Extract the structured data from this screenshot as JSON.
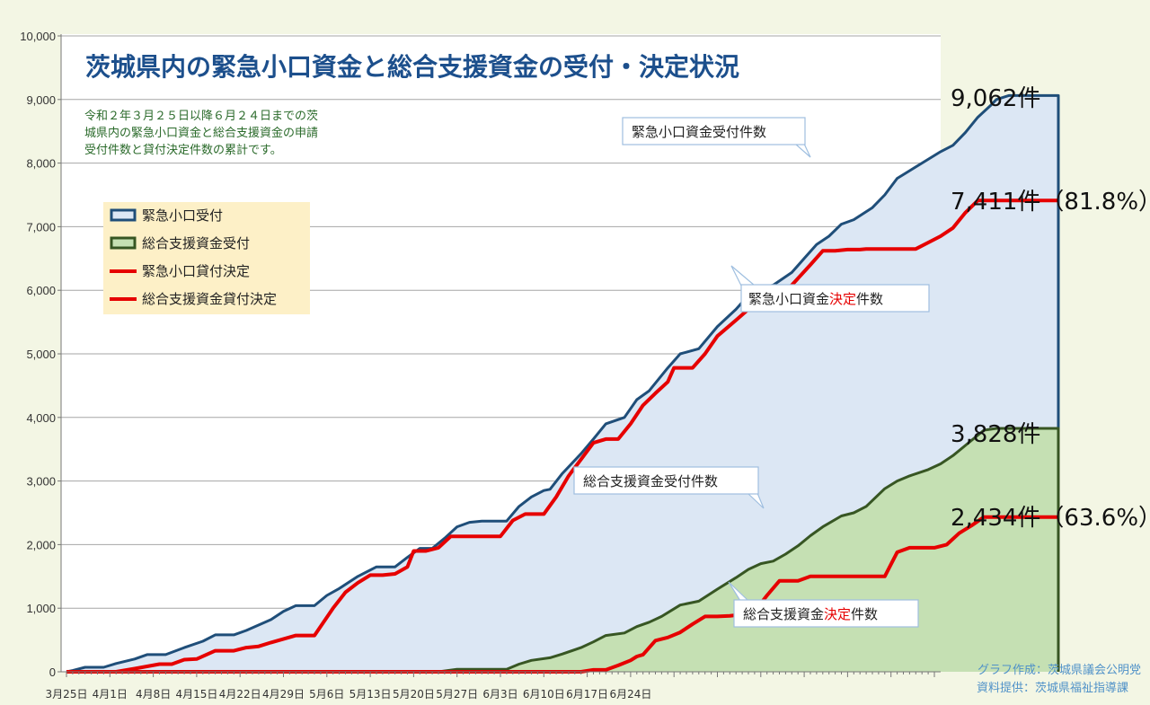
{
  "chart_data": {
    "type": "area",
    "title": "茨城県内の緊急小口資金と総合支援資金の受付・決定状況",
    "subtitle_lines": [
      "令和２年３月２５日以降６月２４日までの茨",
      "城県内の緊急小口資金と総合支援資金の申請",
      "受付件数と貸付決定件数の累計です。"
    ],
    "ylim": [
      0,
      10000
    ],
    "yticks": [
      "0",
      "1,000",
      "2,000",
      "3,000",
      "4,000",
      "5,000",
      "6,000",
      "7,000",
      "8,000",
      "9,000",
      "10,000"
    ],
    "xticks": [
      "3月25日",
      "4月1日",
      "4月8日",
      "4月15日",
      "4月22日",
      "4月29日",
      "5月6日",
      "5月13日",
      "5月20日",
      "5月27日",
      "6月3日",
      "6月10日",
      "6月17日",
      "6月24日"
    ],
    "legend": [
      "緊急小口受付",
      "総合支援資金受付",
      "緊急小口貸付決定",
      "総合支援資金貸付決定"
    ],
    "series": [
      {
        "name": "緊急小口受付",
        "color": "#1f4e79",
        "fill": "#dce7f4",
        "points": [
          [
            0,
            0
          ],
          [
            1,
            20
          ],
          [
            3,
            70
          ],
          [
            6,
            70
          ],
          [
            8,
            130
          ],
          [
            11,
            200
          ],
          [
            13,
            270
          ],
          [
            16,
            270
          ],
          [
            19,
            380
          ],
          [
            22,
            480
          ],
          [
            24,
            580
          ],
          [
            27,
            580
          ],
          [
            29,
            650
          ],
          [
            33,
            820
          ],
          [
            35,
            950
          ],
          [
            37,
            1040
          ],
          [
            40,
            1040
          ],
          [
            42,
            1200
          ],
          [
            44,
            1310
          ],
          [
            47,
            1500
          ],
          [
            50,
            1650
          ],
          [
            53,
            1650
          ],
          [
            55,
            1800
          ],
          [
            57,
            1940
          ],
          [
            59,
            1940
          ],
          [
            61,
            2100
          ],
          [
            63,
            2280
          ],
          [
            65,
            2350
          ],
          [
            67,
            2370
          ],
          [
            71,
            2370
          ],
          [
            73,
            2600
          ],
          [
            75,
            2750
          ],
          [
            77,
            2850
          ],
          [
            78,
            2870
          ],
          [
            80,
            3120
          ],
          [
            83,
            3430
          ],
          [
            85,
            3660
          ],
          [
            87,
            3900
          ],
          [
            90,
            4000
          ],
          [
            92,
            4280
          ],
          [
            94,
            4420
          ],
          [
            97,
            4780
          ],
          [
            99,
            5000
          ],
          [
            102,
            5080
          ],
          [
            105,
            5430
          ],
          [
            108,
            5700
          ],
          [
            110,
            5920
          ],
          [
            112,
            6040
          ],
          [
            114,
            6080
          ],
          [
            117,
            6280
          ],
          [
            119,
            6500
          ],
          [
            121,
            6720
          ],
          [
            123,
            6850
          ],
          [
            125,
            7040
          ],
          [
            127,
            7110
          ],
          [
            130,
            7300
          ],
          [
            132,
            7500
          ],
          [
            134,
            7760
          ],
          [
            136,
            7880
          ],
          [
            139,
            8060
          ],
          [
            141,
            8180
          ],
          [
            143,
            8280
          ],
          [
            145,
            8480
          ],
          [
            147,
            8720
          ],
          [
            149,
            8900
          ],
          [
            150,
            9000
          ],
          [
            152,
            9062
          ],
          [
            160,
            9062
          ]
        ],
        "end_label": "9,062件"
      },
      {
        "name": "総合支援資金受付",
        "color": "#375623",
        "fill": "#c5e0b3",
        "points": [
          [
            0,
            0
          ],
          [
            60,
            0
          ],
          [
            63,
            40
          ],
          [
            71,
            40
          ],
          [
            73,
            120
          ],
          [
            75,
            180
          ],
          [
            78,
            220
          ],
          [
            80,
            280
          ],
          [
            83,
            380
          ],
          [
            85,
            470
          ],
          [
            87,
            570
          ],
          [
            90,
            610
          ],
          [
            92,
            710
          ],
          [
            94,
            780
          ],
          [
            96,
            870
          ],
          [
            99,
            1050
          ],
          [
            102,
            1110
          ],
          [
            105,
            1300
          ],
          [
            108,
            1480
          ],
          [
            110,
            1610
          ],
          [
            112,
            1700
          ],
          [
            114,
            1740
          ],
          [
            116,
            1850
          ],
          [
            118,
            1980
          ],
          [
            120,
            2140
          ],
          [
            122,
            2280
          ],
          [
            125,
            2450
          ],
          [
            127,
            2500
          ],
          [
            129,
            2600
          ],
          [
            132,
            2880
          ],
          [
            134,
            3000
          ],
          [
            136,
            3080
          ],
          [
            139,
            3180
          ],
          [
            141,
            3270
          ],
          [
            143,
            3400
          ],
          [
            145,
            3560
          ],
          [
            147,
            3720
          ],
          [
            148,
            3800
          ],
          [
            150,
            3828
          ],
          [
            160,
            3828
          ]
        ],
        "end_label": "3,828件"
      },
      {
        "name": "緊急小口貸付決定",
        "color": "#e60000",
        "points": [
          [
            0,
            0
          ],
          [
            8,
            0
          ],
          [
            11,
            50
          ],
          [
            15,
            120
          ],
          [
            17,
            120
          ],
          [
            19,
            190
          ],
          [
            21,
            200
          ],
          [
            24,
            330
          ],
          [
            27,
            330
          ],
          [
            29,
            380
          ],
          [
            31,
            400
          ],
          [
            33,
            460
          ],
          [
            37,
            570
          ],
          [
            40,
            570
          ],
          [
            43,
            1000
          ],
          [
            45,
            1250
          ],
          [
            47,
            1400
          ],
          [
            49,
            1520
          ],
          [
            51,
            1520
          ],
          [
            53,
            1540
          ],
          [
            55,
            1650
          ],
          [
            56,
            1900
          ],
          [
            58,
            1900
          ],
          [
            60,
            1950
          ],
          [
            62,
            2130
          ],
          [
            70,
            2130
          ],
          [
            72,
            2380
          ],
          [
            74,
            2480
          ],
          [
            77,
            2480
          ],
          [
            79,
            2750
          ],
          [
            81,
            3080
          ],
          [
            83,
            3340
          ],
          [
            85,
            3600
          ],
          [
            87,
            3660
          ],
          [
            89,
            3660
          ],
          [
            91,
            3900
          ],
          [
            93,
            4190
          ],
          [
            95,
            4380
          ],
          [
            97,
            4560
          ],
          [
            98,
            4780
          ],
          [
            101,
            4780
          ],
          [
            103,
            5000
          ],
          [
            105,
            5280
          ],
          [
            108,
            5530
          ],
          [
            110,
            5700
          ],
          [
            113,
            5700
          ],
          [
            115,
            5900
          ],
          [
            117,
            6080
          ],
          [
            120,
            6400
          ],
          [
            122,
            6620
          ],
          [
            124,
            6620
          ],
          [
            126,
            6640
          ],
          [
            128,
            6640
          ],
          [
            129,
            6650
          ],
          [
            137,
            6650
          ],
          [
            139,
            6750
          ],
          [
            141,
            6850
          ],
          [
            143,
            6980
          ],
          [
            145,
            7220
          ],
          [
            147,
            7411
          ],
          [
            160,
            7411
          ]
        ],
        "end_label": "7,411件（81.8%）"
      },
      {
        "name": "総合支援資金貸付決定",
        "color": "#e60000",
        "points": [
          [
            0,
            0
          ],
          [
            83,
            0
          ],
          [
            85,
            30
          ],
          [
            87,
            30
          ],
          [
            89,
            100
          ],
          [
            91,
            180
          ],
          [
            92,
            240
          ],
          [
            93,
            270
          ],
          [
            95,
            490
          ],
          [
            97,
            540
          ],
          [
            99,
            620
          ],
          [
            101,
            750
          ],
          [
            103,
            870
          ],
          [
            105,
            870
          ],
          [
            107,
            880
          ],
          [
            109,
            900
          ],
          [
            111,
            950
          ],
          [
            113,
            1200
          ],
          [
            115,
            1430
          ],
          [
            118,
            1430
          ],
          [
            120,
            1500
          ],
          [
            132,
            1500
          ],
          [
            134,
            1880
          ],
          [
            136,
            1950
          ],
          [
            140,
            1950
          ],
          [
            142,
            2000
          ],
          [
            144,
            2180
          ],
          [
            146,
            2300
          ],
          [
            148,
            2434
          ],
          [
            160,
            2434
          ]
        ],
        "end_label": "2,434件（63.6%）"
      }
    ],
    "callouts": [
      {
        "text": "緊急小口資金受付件数"
      },
      {
        "text_black": "緊急小口資金",
        "text_red": "決定",
        "text_tail": "件数"
      },
      {
        "text": "総合支援資金受付件数"
      },
      {
        "text_black": "総合支援資金",
        "text_red": "決定",
        "text_tail": "件数"
      }
    ],
    "credits": [
      "グラフ作成：茨城県議会公明党",
      "資料提供：茨城県福祉指導課"
    ]
  }
}
